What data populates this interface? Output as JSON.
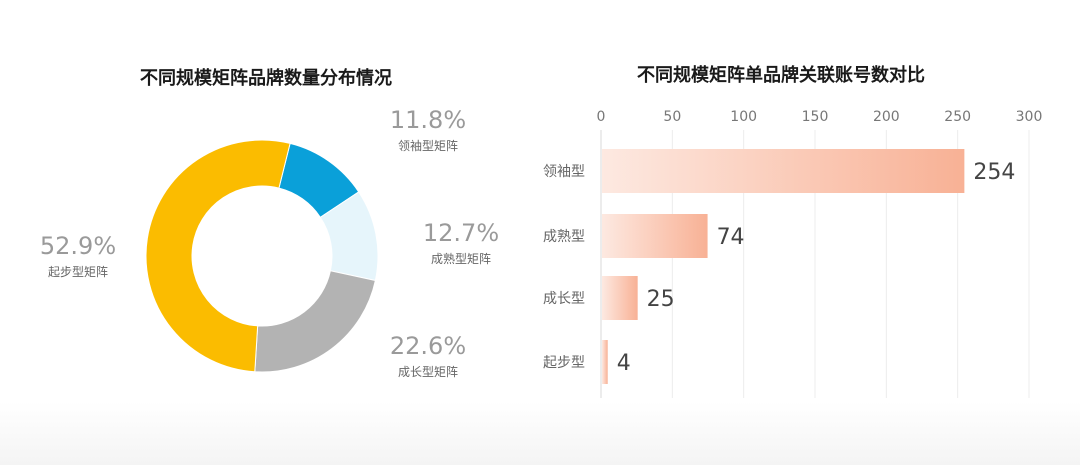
{
  "chart_data": [
    {
      "type": "pie",
      "title": "不同规模矩阵品牌数量分布情况",
      "slices": [
        {
          "name": "领袖型矩阵",
          "value": 11.8,
          "pct_label": "11.8%",
          "color": "#0aa0d9"
        },
        {
          "name": "成熟型矩阵",
          "value": 12.7,
          "pct_label": "12.7%",
          "color": "#e6f5fb"
        },
        {
          "name": "成长型矩阵",
          "value": 22.6,
          "pct_label": "22.6%",
          "color": "#b3b3b3"
        },
        {
          "name": "起步型矩阵",
          "value": 52.9,
          "pct_label": "52.9%",
          "color": "#fbbc00"
        }
      ]
    },
    {
      "type": "bar",
      "orientation": "horizontal",
      "title": "不同规模矩阵单品牌关联账号数对比",
      "categories": [
        "领袖型",
        "成熟型",
        "成长型",
        "起步型"
      ],
      "values": [
        254,
        74,
        25,
        4
      ],
      "xlim": [
        0,
        300
      ],
      "xticks": [
        0,
        50,
        100,
        150,
        200,
        250,
        300
      ],
      "bar_color_start": "#fde9e1",
      "bar_color_end": "#f8b195",
      "grid": true
    }
  ]
}
